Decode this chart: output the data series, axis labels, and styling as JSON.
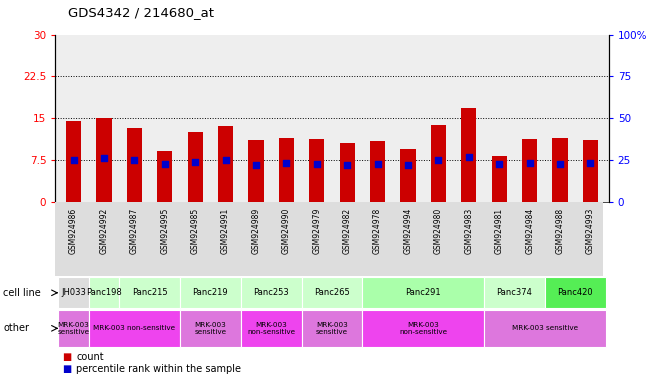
{
  "title": "GDS4342 / 214680_at",
  "samples": [
    "GSM924986",
    "GSM924992",
    "GSM924987",
    "GSM924995",
    "GSM924985",
    "GSM924991",
    "GSM924989",
    "GSM924990",
    "GSM924979",
    "GSM924982",
    "GSM924978",
    "GSM924994",
    "GSM924980",
    "GSM924983",
    "GSM924981",
    "GSM924984",
    "GSM924988",
    "GSM924993"
  ],
  "bar_heights": [
    14.5,
    15.0,
    13.3,
    9.0,
    12.5,
    13.5,
    11.0,
    11.5,
    11.2,
    10.5,
    10.8,
    9.5,
    13.8,
    16.8,
    8.2,
    11.2,
    11.5,
    11.0
  ],
  "blue_dot_pos": [
    7.5,
    7.8,
    7.5,
    6.8,
    7.2,
    7.5,
    6.5,
    7.0,
    6.8,
    6.5,
    6.8,
    6.5,
    7.5,
    8.0,
    6.8,
    6.9,
    6.8,
    7.0
  ],
  "ylim_left": [
    0,
    30
  ],
  "ylim_right": [
    0,
    100
  ],
  "yticks_left": [
    0,
    7.5,
    15,
    22.5,
    30
  ],
  "yticks_right": [
    0,
    25,
    50,
    75,
    100
  ],
  "ytick_labels_left": [
    "0",
    "7.5",
    "15",
    "22.5",
    "30"
  ],
  "ytick_labels_right": [
    "0",
    "25",
    "50",
    "75",
    "100%"
  ],
  "hlines": [
    7.5,
    15.0,
    22.5
  ],
  "bar_color": "#cc0000",
  "dot_color": "#0000cc",
  "bar_width": 0.5,
  "cell_line_groups": [
    {
      "name": "JH033",
      "sample_indices": [
        0
      ],
      "color": "#dddddd"
    },
    {
      "name": "Panc198",
      "sample_indices": [
        1
      ],
      "color": "#ccffcc"
    },
    {
      "name": "Panc215",
      "sample_indices": [
        2,
        3
      ],
      "color": "#ccffcc"
    },
    {
      "name": "Panc219",
      "sample_indices": [
        4,
        5
      ],
      "color": "#ccffcc"
    },
    {
      "name": "Panc253",
      "sample_indices": [
        6,
        7
      ],
      "color": "#ccffcc"
    },
    {
      "name": "Panc265",
      "sample_indices": [
        8,
        9
      ],
      "color": "#ccffcc"
    },
    {
      "name": "Panc291",
      "sample_indices": [
        10,
        11,
        12,
        13
      ],
      "color": "#aaffaa"
    },
    {
      "name": "Panc374",
      "sample_indices": [
        14,
        15
      ],
      "color": "#ccffcc"
    },
    {
      "name": "Panc420",
      "sample_indices": [
        16,
        17
      ],
      "color": "#55ee55"
    }
  ],
  "other_groups": [
    {
      "label": "MRK-003\nsensitive",
      "sample_indices": [
        0
      ],
      "color": "#dd77dd"
    },
    {
      "label": "MRK-003 non-sensitive",
      "sample_indices": [
        1,
        2,
        3
      ],
      "color": "#ee44ee"
    },
    {
      "label": "MRK-003\nsensitive",
      "sample_indices": [
        4,
        5
      ],
      "color": "#dd77dd"
    },
    {
      "label": "MRK-003\nnon-sensitive",
      "sample_indices": [
        6,
        7
      ],
      "color": "#ee44ee"
    },
    {
      "label": "MRK-003\nsensitive",
      "sample_indices": [
        8,
        9
      ],
      "color": "#dd77dd"
    },
    {
      "label": "MRK-003\nnon-sensitive",
      "sample_indices": [
        10,
        11,
        12,
        13
      ],
      "color": "#ee44ee"
    },
    {
      "label": "MRK-003 sensitive",
      "sample_indices": [
        14,
        15,
        16,
        17
      ],
      "color": "#dd77dd"
    }
  ],
  "legend_count_color": "#cc0000",
  "legend_pct_color": "#0000cc",
  "bg_color": "#ffffff",
  "axis_area_color": "#eeeeee",
  "chart_bg_color": "#ffffff"
}
